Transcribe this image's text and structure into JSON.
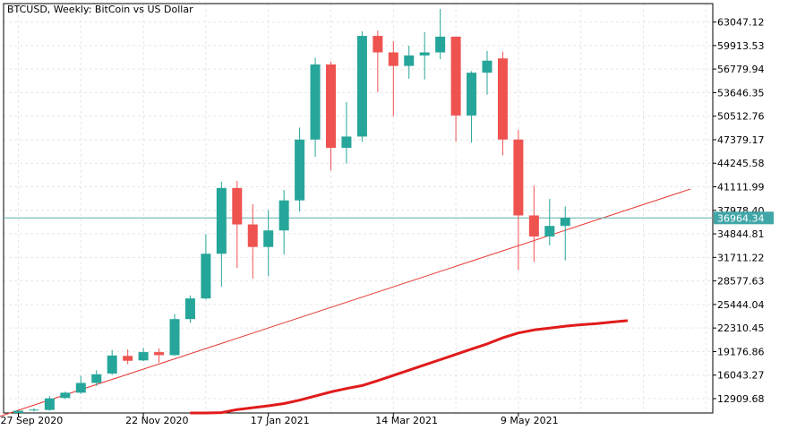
{
  "chart_data": {
    "type": "candlestick",
    "title": "BTCUSD, Weekly:  BitCoin vs US Dollar",
    "colors": {
      "up": "#26a69a",
      "down": "#ef5350",
      "trendline": "#e53935",
      "moving_average": "#e11b1b",
      "price_line": "#5fb0b3",
      "price_label_bg": "#41a6a8",
      "grid": "#e6e6e6",
      "frame": "#000000"
    },
    "grid": true,
    "ylim": [
      11000,
      65500
    ],
    "y_ticks": [
      "63047.12",
      "59913.53",
      "56779.94",
      "53646.35",
      "50512.76",
      "47379.17",
      "44245.58",
      "41111.99",
      "37978.40",
      "34844.81",
      "31711.22",
      "28577.63",
      "25444.04",
      "22310.45",
      "19176.86",
      "16043.27",
      "12909.68"
    ],
    "x_ticks": [
      {
        "index": 0,
        "label": "27 Sep 2020"
      },
      {
        "index": 8,
        "label": "22 Nov 2020"
      },
      {
        "index": 16,
        "label": "17 Jan 2021"
      },
      {
        "index": 24,
        "label": "14 Mar 2021"
      },
      {
        "index": 32,
        "label": "9 May 2021"
      }
    ],
    "current_price": 36964.34,
    "current_price_label": "36964.34",
    "candles": [
      {
        "o": 10650,
        "h": 11050,
        "l": 10450,
        "c": 11300
      },
      {
        "o": 11350,
        "h": 11650,
        "l": 11200,
        "c": 11450
      },
      {
        "o": 11400,
        "h": 13250,
        "l": 11300,
        "c": 12950
      },
      {
        "o": 13000,
        "h": 13850,
        "l": 12850,
        "c": 13700
      },
      {
        "o": 13700,
        "h": 15950,
        "l": 13550,
        "c": 15000
      },
      {
        "o": 15000,
        "h": 16700,
        "l": 14600,
        "c": 16150
      },
      {
        "o": 16250,
        "h": 19400,
        "l": 16100,
        "c": 18650
      },
      {
        "o": 18600,
        "h": 19450,
        "l": 17500,
        "c": 17950
      },
      {
        "o": 18000,
        "h": 19650,
        "l": 17900,
        "c": 19100
      },
      {
        "o": 19100,
        "h": 19600,
        "l": 17700,
        "c": 18700
      },
      {
        "o": 18700,
        "h": 24200,
        "l": 18600,
        "c": 23500
      },
      {
        "o": 23500,
        "h": 26650,
        "l": 23000,
        "c": 26250
      },
      {
        "o": 26250,
        "h": 34800,
        "l": 26100,
        "c": 32200
      },
      {
        "o": 32200,
        "h": 41800,
        "l": 27800,
        "c": 40950
      },
      {
        "o": 40950,
        "h": 41900,
        "l": 30300,
        "c": 36100
      },
      {
        "o": 36100,
        "h": 38800,
        "l": 28900,
        "c": 33100
      },
      {
        "o": 33100,
        "h": 38000,
        "l": 29200,
        "c": 35300
      },
      {
        "o": 35300,
        "h": 40700,
        "l": 32100,
        "c": 39300
      },
      {
        "o": 39300,
        "h": 49000,
        "l": 37800,
        "c": 47400
      },
      {
        "o": 47400,
        "h": 58300,
        "l": 45100,
        "c": 57400
      },
      {
        "o": 57400,
        "h": 57800,
        "l": 43300,
        "c": 46300
      },
      {
        "o": 46300,
        "h": 52400,
        "l": 44200,
        "c": 47800
      },
      {
        "o": 47800,
        "h": 61800,
        "l": 47100,
        "c": 61200
      },
      {
        "o": 61200,
        "h": 61900,
        "l": 53700,
        "c": 59000
      },
      {
        "o": 59000,
        "h": 60500,
        "l": 50500,
        "c": 57200
      },
      {
        "o": 57200,
        "h": 59900,
        "l": 55500,
        "c": 58600
      },
      {
        "o": 58600,
        "h": 61700,
        "l": 55400,
        "c": 59000
      },
      {
        "o": 59000,
        "h": 64800,
        "l": 58100,
        "c": 61100
      },
      {
        "o": 61100,
        "h": 61100,
        "l": 47100,
        "c": 50600
      },
      {
        "o": 50600,
        "h": 56500,
        "l": 47000,
        "c": 56300
      },
      {
        "o": 56300,
        "h": 59200,
        "l": 53400,
        "c": 57900
      },
      {
        "o": 58200,
        "h": 59100,
        "l": 45300,
        "c": 47400
      },
      {
        "o": 47400,
        "h": 48700,
        "l": 30000,
        "c": 37300
      },
      {
        "o": 37300,
        "h": 41300,
        "l": 31100,
        "c": 34500
      },
      {
        "o": 34500,
        "h": 39500,
        "l": 33300,
        "c": 35900
      },
      {
        "o": 35900,
        "h": 38500,
        "l": 31300,
        "c": 37000
      }
    ],
    "trendline": {
      "from": {
        "index": -1.7,
        "value": 10200
      },
      "to": {
        "index": 43,
        "value": 40800
      }
    },
    "moving_average": [
      {
        "index": 11,
        "value": 10300
      },
      {
        "index": 12,
        "value": 10650
      },
      {
        "index": 13,
        "value": 11050
      },
      {
        "index": 14,
        "value": 11450
      },
      {
        "index": 15,
        "value": 11700
      },
      {
        "index": 16,
        "value": 11950
      },
      {
        "index": 17,
        "value": 12250
      },
      {
        "index": 18,
        "value": 12700
      },
      {
        "index": 19,
        "value": 13250
      },
      {
        "index": 20,
        "value": 13800
      },
      {
        "index": 21,
        "value": 14250
      },
      {
        "index": 22,
        "value": 14650
      },
      {
        "index": 23,
        "value": 15300
      },
      {
        "index": 24,
        "value": 16000
      },
      {
        "index": 25,
        "value": 16700
      },
      {
        "index": 26,
        "value": 17400
      },
      {
        "index": 27,
        "value": 18100
      },
      {
        "index": 28,
        "value": 18800
      },
      {
        "index": 29,
        "value": 19500
      },
      {
        "index": 30,
        "value": 20200
      },
      {
        "index": 31,
        "value": 21000
      },
      {
        "index": 32,
        "value": 21650
      },
      {
        "index": 33,
        "value": 22050
      },
      {
        "index": 34,
        "value": 22300
      },
      {
        "index": 35,
        "value": 22550
      },
      {
        "index": 36,
        "value": 22750
      },
      {
        "index": 37,
        "value": 22900
      },
      {
        "index": 38,
        "value": 23100
      },
      {
        "index": 39,
        "value": 23300
      }
    ]
  }
}
